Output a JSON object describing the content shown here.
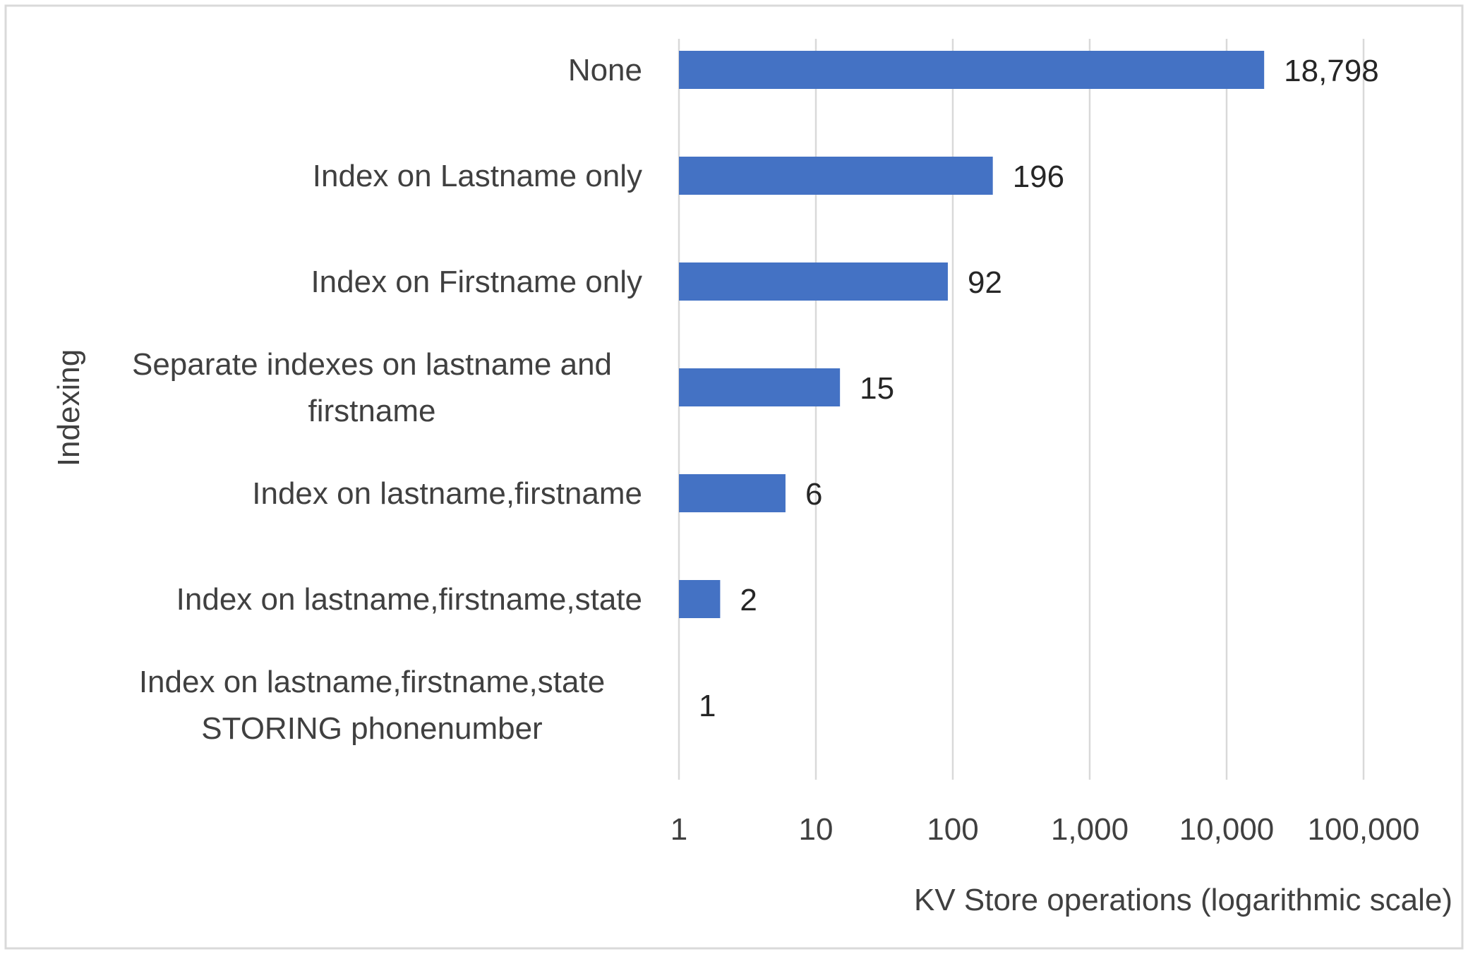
{
  "chart_data": {
    "type": "bar",
    "orientation": "horizontal",
    "categories": [
      [
        "None"
      ],
      [
        "Index on Lastname only"
      ],
      [
        "Index on Firstname only"
      ],
      [
        "Separate indexes on lastname and",
        "firstname"
      ],
      [
        "Index on lastname,firstname"
      ],
      [
        "Index on lastname,firstname,state"
      ],
      [
        "Index on lastname,firstname,state",
        "STORING phonenumber"
      ]
    ],
    "values": [
      18798,
      196,
      92,
      15,
      6,
      2,
      1
    ],
    "data_labels": [
      "18,798",
      "196",
      "92",
      "15",
      "6",
      "2",
      "1"
    ],
    "xscale": "log",
    "xlim": [
      1,
      100000
    ],
    "x_ticks": [
      1,
      10,
      100,
      1000,
      10000,
      100000
    ],
    "x_tick_labels": [
      "1",
      "10",
      "100",
      "1,000",
      "10,000",
      "100,000"
    ],
    "xlabel": "KV Store operations (logarithmic scale)",
    "ylabel": "Indexing",
    "grid": "vertical",
    "legend": "none",
    "bar_color": "#4472c4"
  }
}
